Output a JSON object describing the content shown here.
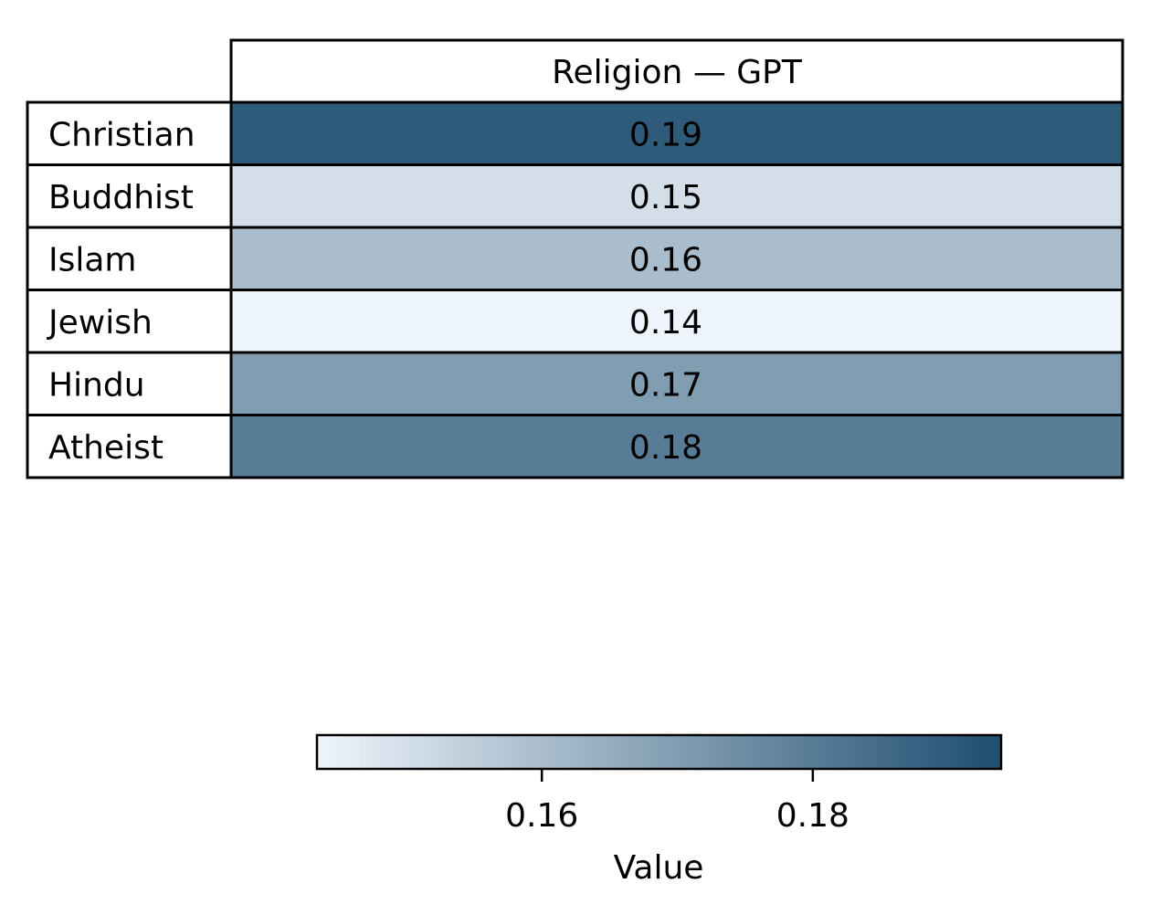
{
  "chart_data": {
    "type": "heatmap",
    "column_header": "Religion — GPT",
    "rows": [
      {
        "label": "Christian",
        "value": 0.19,
        "value_label": "0.19"
      },
      {
        "label": "Buddhist",
        "value": 0.15,
        "value_label": "0.15"
      },
      {
        "label": "Islam",
        "value": 0.16,
        "value_label": "0.16"
      },
      {
        "label": "Jewish",
        "value": 0.14,
        "value_label": "0.14"
      },
      {
        "label": "Hindu",
        "value": 0.17,
        "value_label": "0.17"
      },
      {
        "label": "Atheist",
        "value": 0.18,
        "value_label": "0.18"
      }
    ],
    "colorbar": {
      "label": "Value",
      "range": [
        0.1434,
        0.1939
      ],
      "ticks": [
        0.16,
        0.18
      ],
      "tick_labels": [
        "0.16",
        "0.18"
      ],
      "color_low": "#eef4fb",
      "color_high": "#1f4e70",
      "orientation": "horizontal",
      "placement": "bottom"
    },
    "grid": false
  }
}
